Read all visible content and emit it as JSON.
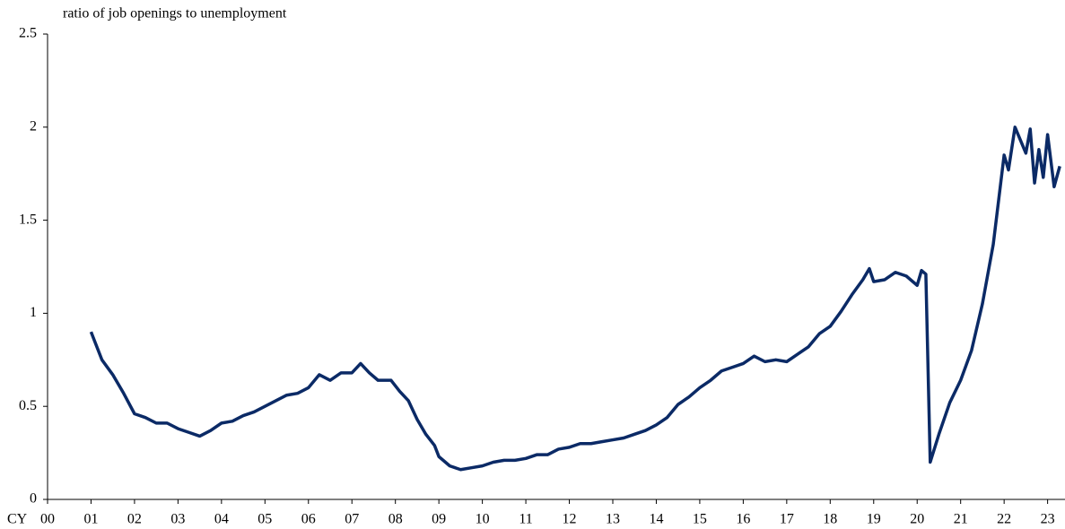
{
  "chart_data": {
    "type": "line",
    "title": "ratio of job openings to unemployment",
    "xlabel": "CY",
    "xlim": [
      2000,
      2023.4
    ],
    "ylim": [
      0,
      2.5
    ],
    "yticks": [
      0,
      0.5,
      1,
      1.5,
      2,
      2.5
    ],
    "xticks": [
      {
        "value": 2000,
        "label": "00"
      },
      {
        "value": 2001,
        "label": "01"
      },
      {
        "value": 2002,
        "label": "02"
      },
      {
        "value": 2003,
        "label": "03"
      },
      {
        "value": 2004,
        "label": "04"
      },
      {
        "value": 2005,
        "label": "05"
      },
      {
        "value": 2006,
        "label": "06"
      },
      {
        "value": 2007,
        "label": "07"
      },
      {
        "value": 2008,
        "label": "08"
      },
      {
        "value": 2009,
        "label": "09"
      },
      {
        "value": 2010,
        "label": "10"
      },
      {
        "value": 2011,
        "label": "11"
      },
      {
        "value": 2012,
        "label": "12"
      },
      {
        "value": 2013,
        "label": "13"
      },
      {
        "value": 2014,
        "label": "14"
      },
      {
        "value": 2015,
        "label": "15"
      },
      {
        "value": 2016,
        "label": "16"
      },
      {
        "value": 2017,
        "label": "17"
      },
      {
        "value": 2018,
        "label": "18"
      },
      {
        "value": 2019,
        "label": "19"
      },
      {
        "value": 2020,
        "label": "20"
      },
      {
        "value": 2021,
        "label": "21"
      },
      {
        "value": 2022,
        "label": "22"
      },
      {
        "value": 2023,
        "label": "23"
      }
    ],
    "x": [
      2001.0,
      2001.25,
      2001.5,
      2001.75,
      2002.0,
      2002.25,
      2002.5,
      2002.75,
      2003.0,
      2003.25,
      2003.5,
      2003.75,
      2004.0,
      2004.25,
      2004.5,
      2004.75,
      2005.0,
      2005.25,
      2005.5,
      2005.75,
      2006.0,
      2006.25,
      2006.5,
      2006.75,
      2007.0,
      2007.2,
      2007.4,
      2007.6,
      2007.9,
      2008.1,
      2008.3,
      2008.5,
      2008.7,
      2008.9,
      2009.0,
      2009.25,
      2009.5,
      2009.75,
      2010.0,
      2010.25,
      2010.5,
      2010.75,
      2011.0,
      2011.25,
      2011.5,
      2011.75,
      2012.0,
      2012.25,
      2012.5,
      2012.75,
      2013.0,
      2013.25,
      2013.5,
      2013.75,
      2014.0,
      2014.25,
      2014.5,
      2014.75,
      2015.0,
      2015.25,
      2015.5,
      2015.75,
      2016.0,
      2016.25,
      2016.5,
      2016.75,
      2017.0,
      2017.25,
      2017.5,
      2017.75,
      2018.0,
      2018.25,
      2018.5,
      2018.75,
      2018.9,
      2019.0,
      2019.25,
      2019.5,
      2019.75,
      2020.0,
      2020.1,
      2020.2,
      2020.3,
      2020.5,
      2020.75,
      2021.0,
      2021.25,
      2021.5,
      2021.75,
      2022.0,
      2022.1,
      2022.25,
      2022.5,
      2022.6,
      2022.7,
      2022.8,
      2022.9,
      2023.0,
      2023.15,
      2023.28
    ],
    "series": [
      {
        "color": "#0b2a66",
        "values": [
          0.9,
          0.75,
          0.67,
          0.57,
          0.46,
          0.44,
          0.41,
          0.41,
          0.38,
          0.36,
          0.34,
          0.37,
          0.41,
          0.42,
          0.45,
          0.47,
          0.5,
          0.53,
          0.56,
          0.57,
          0.6,
          0.67,
          0.64,
          0.68,
          0.68,
          0.73,
          0.68,
          0.64,
          0.64,
          0.58,
          0.53,
          0.43,
          0.35,
          0.29,
          0.23,
          0.18,
          0.16,
          0.17,
          0.18,
          0.2,
          0.21,
          0.21,
          0.22,
          0.24,
          0.24,
          0.27,
          0.28,
          0.3,
          0.3,
          0.31,
          0.32,
          0.33,
          0.35,
          0.37,
          0.4,
          0.44,
          0.51,
          0.55,
          0.6,
          0.64,
          0.69,
          0.71,
          0.73,
          0.77,
          0.74,
          0.75,
          0.74,
          0.78,
          0.82,
          0.89,
          0.93,
          1.01,
          1.1,
          1.18,
          1.24,
          1.17,
          1.18,
          1.22,
          1.2,
          1.15,
          1.23,
          1.21,
          0.2,
          0.35,
          0.52,
          0.64,
          0.8,
          1.05,
          1.37,
          1.85,
          1.77,
          2.0,
          1.86,
          1.99,
          1.7,
          1.88,
          1.73,
          1.96,
          1.68,
          1.79
        ]
      }
    ]
  }
}
